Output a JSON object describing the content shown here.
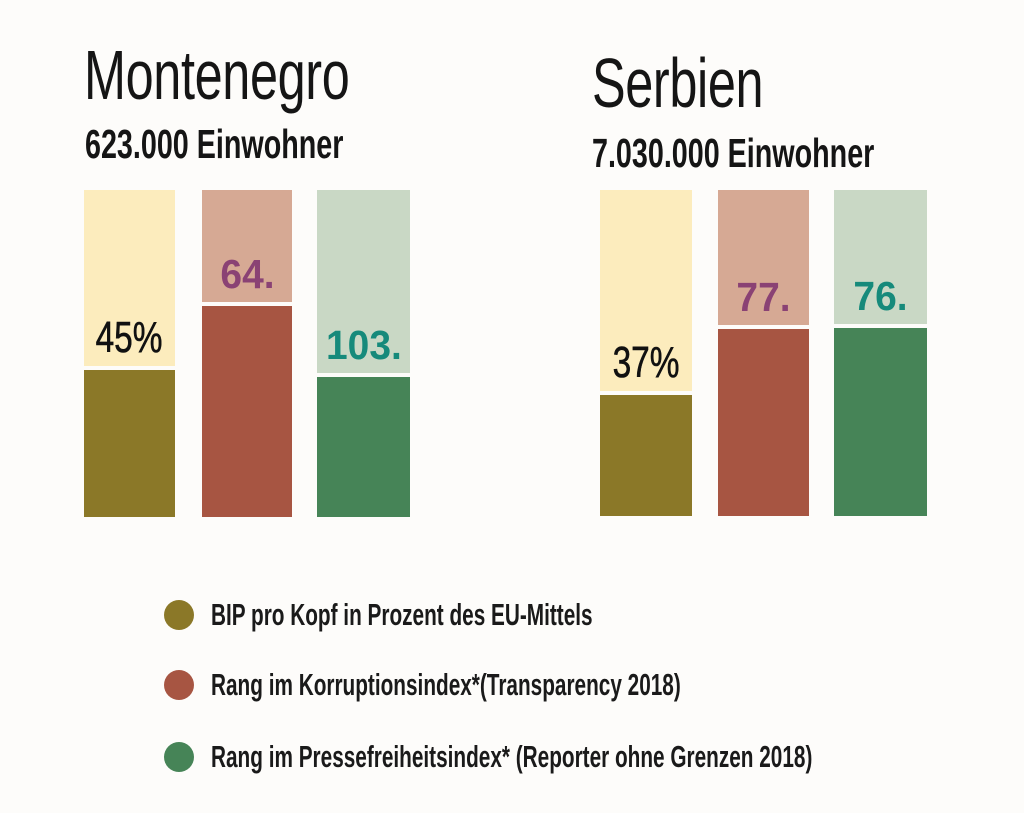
{
  "chart_data": {
    "type": "bar",
    "title": "",
    "rank_scale_max": 180,
    "panels": [
      {
        "country": "Montenegro",
        "population_label": "623.000 Einwohner",
        "bars": [
          {
            "series": "BIP pro Kopf in Prozent des EU-Mittels",
            "value": 45,
            "label": "45%",
            "kind": "percent"
          },
          {
            "series": "Rang im Korruptionsindex*(Transparency 2018)",
            "value": 64,
            "label": "64.",
            "kind": "rank"
          },
          {
            "series": "Rang im Pressefreiheitsindex* (Reporter ohne Grenzen 2018)",
            "value": 103,
            "label": "103.",
            "kind": "rank"
          }
        ]
      },
      {
        "country": "Serbien",
        "population_label": "7.030.000 Einwohner",
        "bars": [
          {
            "series": "BIP pro Kopf in Prozent des EU-Mittels",
            "value": 37,
            "label": "37%",
            "kind": "percent"
          },
          {
            "series": "Rang im Korruptionsindex*(Transparency 2018)",
            "value": 77,
            "label": "77.",
            "kind": "rank"
          },
          {
            "series": "Rang im Pressefreiheitsindex* (Reporter ohne Grenzen 2018)",
            "value": 76,
            "label": "76.",
            "kind": "rank"
          }
        ]
      }
    ],
    "legend": [
      {
        "label": "BIP pro Kopf in Prozent des EU-Mittels",
        "color": "#8b7828",
        "light_color": "#fcecbd",
        "label_color": "#111111"
      },
      {
        "label": "Rang im Korruptionsindex*(Transparency 2018)",
        "color": "#a75542",
        "light_color": "#d6a994",
        "label_color": "#8a4274"
      },
      {
        "label": "Rang im Pressefreiheitsindex* (Reporter ohne Grenzen 2018)",
        "color": "#468457",
        "light_color": "#c9d8c5",
        "label_color": "#168a7b"
      }
    ],
    "legend_position": "bottom"
  }
}
